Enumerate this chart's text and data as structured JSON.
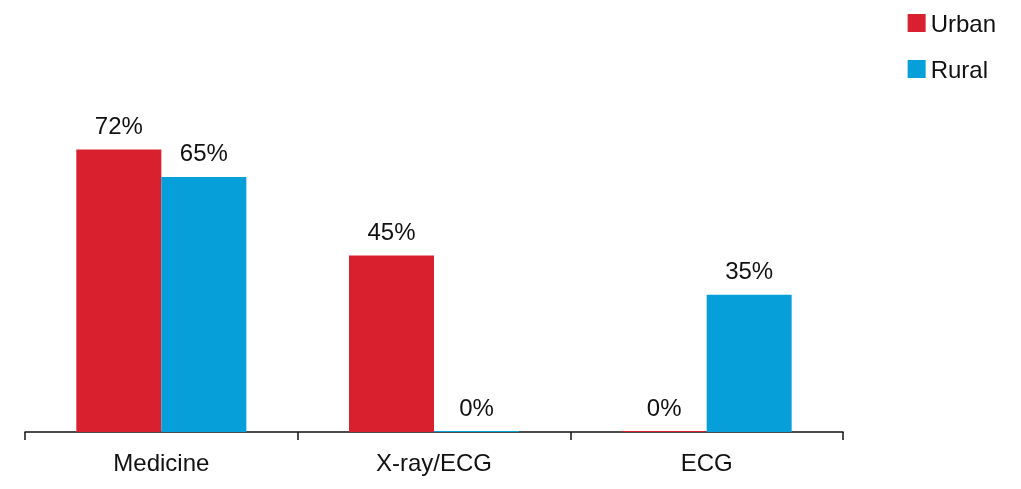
{
  "chart_data": {
    "type": "bar",
    "categories": [
      "Medicine",
      "X-ray/ECG",
      "ECG"
    ],
    "series": [
      {
        "name": "Urban",
        "color": "#d9202e",
        "values": [
          72,
          45,
          0
        ],
        "value_labels": [
          "72%",
          "45%",
          "0%"
        ]
      },
      {
        "name": "Rural",
        "color": "#069fd9",
        "values": [
          65,
          0,
          35
        ],
        "value_labels": [
          "65%",
          "0%",
          "35%"
        ]
      }
    ],
    "legend": "top right"
  }
}
